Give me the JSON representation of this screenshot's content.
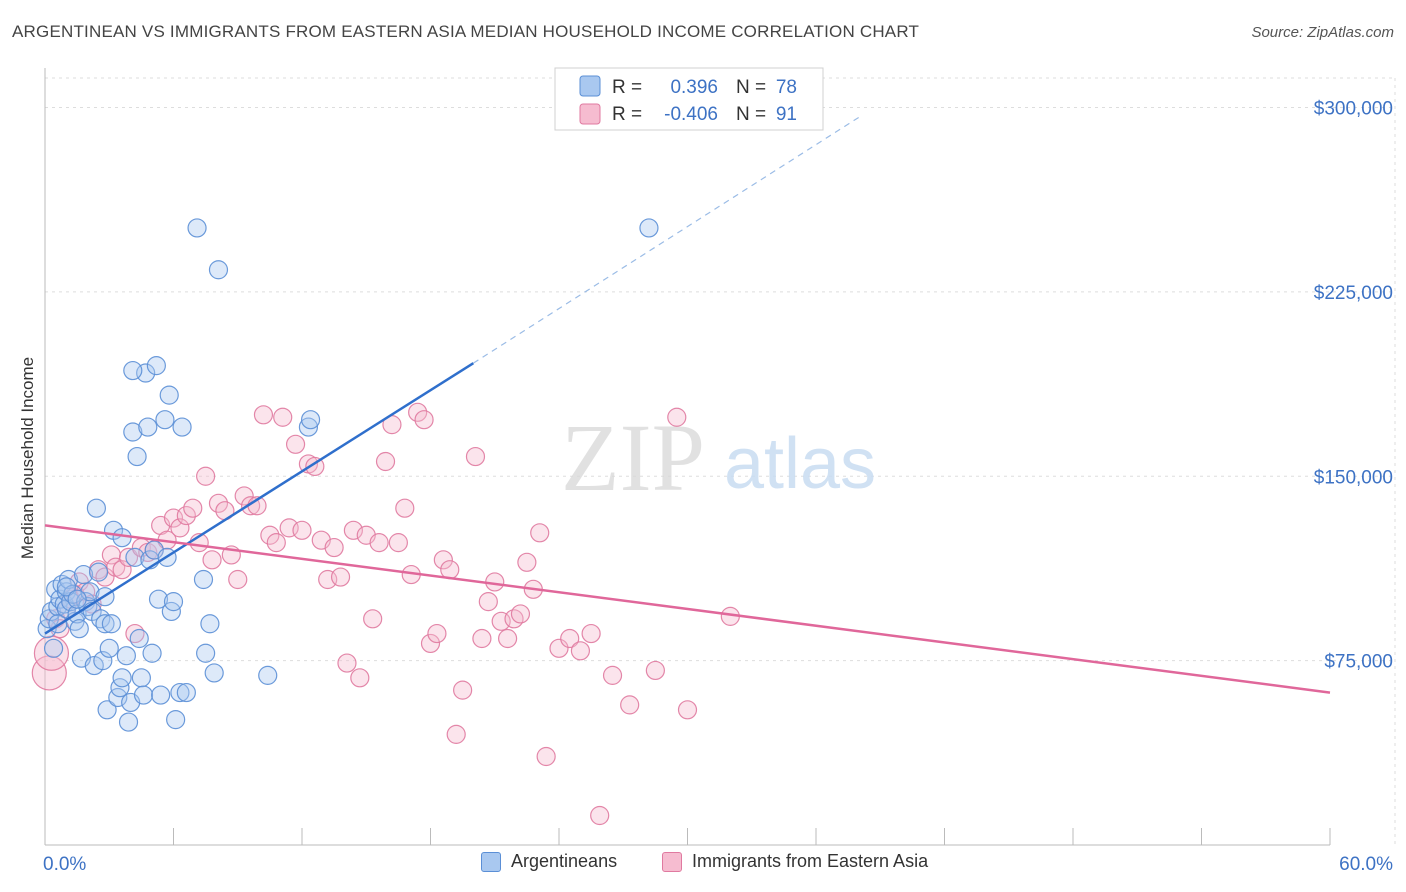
{
  "title": "ARGENTINEAN VS IMMIGRANTS FROM EASTERN ASIA MEDIAN HOUSEHOLD INCOME CORRELATION CHART",
  "source": "Source: ZipAtlas.com",
  "watermark": {
    "zip": "ZIP",
    "atlas": "atlas"
  },
  "colors": {
    "blue_fill": "#a9c8f0",
    "blue_stroke": "#5b8fd6",
    "blue_line": "#2f6fcc",
    "pink_fill": "#f6bcd0",
    "pink_stroke": "#e07aa0",
    "pink_line": "#e0679a",
    "axis_text": "#3d72c4",
    "grid": "#dddddd"
  },
  "legend_top": [
    {
      "r_label": "R =",
      "r_value": "0.396",
      "n_label": "N =",
      "n_value": "78"
    },
    {
      "r_label": "R =",
      "r_value": "-0.406",
      "n_label": "N =",
      "n_value": "91"
    }
  ],
  "legend_bottom": [
    {
      "label": "Argentineans"
    },
    {
      "label": "Immigrants from Eastern Asia"
    }
  ],
  "chart_data": {
    "type": "scatter",
    "title": "ARGENTINEAN VS IMMIGRANTS FROM EASTERN ASIA MEDIAN HOUSEHOLD INCOME CORRELATION CHART",
    "xlabel": "",
    "ylabel": "Median Household Income",
    "xlim": [
      0,
      60
    ],
    "ylim": [
      0,
      312000
    ],
    "x_tick_labels": [
      "0.0%",
      "60.0%"
    ],
    "y_ticks": [
      75000,
      150000,
      225000,
      300000
    ],
    "y_tick_labels": [
      "$75,000",
      "$150,000",
      "$225,000",
      "$300,000"
    ],
    "grid": true,
    "series": [
      {
        "name": "Argentineans",
        "r": 0.396,
        "n": 78,
        "trend": {
          "x0": 0,
          "y0": 86000,
          "x1": 20,
          "y1": 196000,
          "dash_to_x": 38,
          "dash_to_y": 296000
        },
        "points": [
          [
            0.1,
            88000
          ],
          [
            0.2,
            92000
          ],
          [
            0.3,
            95000
          ],
          [
            0.4,
            80000
          ],
          [
            0.5,
            104000
          ],
          [
            0.6,
            97000
          ],
          [
            0.7,
            100000
          ],
          [
            0.8,
            106000
          ],
          [
            0.9,
            98000
          ],
          [
            1.0,
            103000
          ],
          [
            1.0,
            96000
          ],
          [
            1.1,
            108000
          ],
          [
            1.2,
            99000
          ],
          [
            1.3,
            102000
          ],
          [
            1.4,
            91000
          ],
          [
            1.5,
            94000
          ],
          [
            1.6,
            88000
          ],
          [
            1.7,
            76000
          ],
          [
            1.8,
            110000
          ],
          [
            1.9,
            99000
          ],
          [
            2.0,
            97000
          ],
          [
            2.1,
            103000
          ],
          [
            2.2,
            95000
          ],
          [
            2.3,
            73000
          ],
          [
            2.4,
            137000
          ],
          [
            2.5,
            111000
          ],
          [
            2.6,
            92000
          ],
          [
            2.7,
            75000
          ],
          [
            2.8,
            90000
          ],
          [
            2.9,
            55000
          ],
          [
            3.0,
            80000
          ],
          [
            3.1,
            90000
          ],
          [
            3.2,
            128000
          ],
          [
            3.4,
            60000
          ],
          [
            3.5,
            64000
          ],
          [
            3.6,
            68000
          ],
          [
            3.8,
            77000
          ],
          [
            3.9,
            50000
          ],
          [
            4.0,
            58000
          ],
          [
            4.1,
            168000
          ],
          [
            4.2,
            117000
          ],
          [
            4.3,
            158000
          ],
          [
            4.4,
            84000
          ],
          [
            4.5,
            68000
          ],
          [
            4.6,
            61000
          ],
          [
            4.7,
            192000
          ],
          [
            4.8,
            170000
          ],
          [
            4.9,
            116000
          ],
          [
            5.0,
            78000
          ],
          [
            5.1,
            120000
          ],
          [
            5.2,
            195000
          ],
          [
            5.3,
            100000
          ],
          [
            5.4,
            61000
          ],
          [
            5.6,
            173000
          ],
          [
            5.7,
            117000
          ],
          [
            5.8,
            183000
          ],
          [
            5.9,
            95000
          ],
          [
            6.0,
            99000
          ],
          [
            6.1,
            51000
          ],
          [
            6.3,
            62000
          ],
          [
            6.4,
            170000
          ],
          [
            6.6,
            62000
          ],
          [
            7.1,
            251000
          ],
          [
            7.4,
            108000
          ],
          [
            7.5,
            78000
          ],
          [
            7.7,
            90000
          ],
          [
            7.9,
            70000
          ],
          [
            8.1,
            234000
          ],
          [
            10.4,
            69000
          ],
          [
            12.3,
            170000
          ],
          [
            12.4,
            173000
          ],
          [
            28.2,
            251000
          ],
          [
            1.0,
            105000
          ],
          [
            2.8,
            101000
          ],
          [
            0.6,
            90000
          ],
          [
            1.5,
            100000
          ],
          [
            3.6,
            125000
          ],
          [
            4.1,
            193000
          ]
        ]
      },
      {
        "name": "Immigrants from Eastern Asia",
        "r": -0.406,
        "n": 91,
        "trend": {
          "x0": 0,
          "y0": 130000,
          "x1": 60,
          "y1": 62000
        },
        "points": [
          [
            0.2,
            70000
          ],
          [
            0.3,
            78000
          ],
          [
            0.5,
            92000
          ],
          [
            0.7,
            88000
          ],
          [
            1.0,
            96000
          ],
          [
            1.2,
            100000
          ],
          [
            1.4,
            102000
          ],
          [
            1.6,
            107000
          ],
          [
            1.9,
            103000
          ],
          [
            2.2,
            98000
          ],
          [
            2.5,
            112000
          ],
          [
            2.8,
            109000
          ],
          [
            3.1,
            118000
          ],
          [
            3.3,
            113000
          ],
          [
            3.6,
            112000
          ],
          [
            3.9,
            117000
          ],
          [
            4.2,
            86000
          ],
          [
            4.5,
            121000
          ],
          [
            4.8,
            119000
          ],
          [
            5.1,
            120000
          ],
          [
            5.4,
            130000
          ],
          [
            5.7,
            124000
          ],
          [
            6.0,
            133000
          ],
          [
            6.3,
            129000
          ],
          [
            6.6,
            134000
          ],
          [
            6.9,
            137000
          ],
          [
            7.2,
            123000
          ],
          [
            7.5,
            150000
          ],
          [
            7.8,
            116000
          ],
          [
            8.1,
            139000
          ],
          [
            8.4,
            136000
          ],
          [
            8.7,
            118000
          ],
          [
            9.0,
            108000
          ],
          [
            9.3,
            142000
          ],
          [
            9.6,
            138000
          ],
          [
            9.9,
            138000
          ],
          [
            10.2,
            175000
          ],
          [
            10.5,
            126000
          ],
          [
            10.8,
            123000
          ],
          [
            11.1,
            174000
          ],
          [
            11.4,
            129000
          ],
          [
            11.7,
            163000
          ],
          [
            12.0,
            128000
          ],
          [
            12.3,
            155000
          ],
          [
            12.6,
            154000
          ],
          [
            12.9,
            124000
          ],
          [
            13.2,
            108000
          ],
          [
            13.5,
            121000
          ],
          [
            13.8,
            109000
          ],
          [
            14.1,
            74000
          ],
          [
            14.4,
            128000
          ],
          [
            14.7,
            68000
          ],
          [
            15.0,
            126000
          ],
          [
            15.3,
            92000
          ],
          [
            15.6,
            123000
          ],
          [
            15.9,
            156000
          ],
          [
            16.2,
            171000
          ],
          [
            16.5,
            123000
          ],
          [
            16.8,
            137000
          ],
          [
            17.1,
            110000
          ],
          [
            17.4,
            176000
          ],
          [
            17.7,
            173000
          ],
          [
            18.0,
            82000
          ],
          [
            18.3,
            86000
          ],
          [
            18.6,
            116000
          ],
          [
            18.9,
            112000
          ],
          [
            19.2,
            45000
          ],
          [
            19.5,
            63000
          ],
          [
            20.1,
            158000
          ],
          [
            20.4,
            84000
          ],
          [
            20.7,
            99000
          ],
          [
            21.0,
            107000
          ],
          [
            21.3,
            91000
          ],
          [
            21.6,
            84000
          ],
          [
            21.9,
            92000
          ],
          [
            22.2,
            94000
          ],
          [
            22.5,
            115000
          ],
          [
            22.8,
            104000
          ],
          [
            23.1,
            127000
          ],
          [
            23.4,
            36000
          ],
          [
            24.0,
            80000
          ],
          [
            24.5,
            84000
          ],
          [
            25.0,
            79000
          ],
          [
            25.5,
            86000
          ],
          [
            25.9,
            12000
          ],
          [
            26.5,
            69000
          ],
          [
            27.3,
            57000
          ],
          [
            28.5,
            71000
          ],
          [
            29.5,
            174000
          ],
          [
            30.0,
            55000
          ],
          [
            32.0,
            93000
          ]
        ]
      }
    ]
  }
}
